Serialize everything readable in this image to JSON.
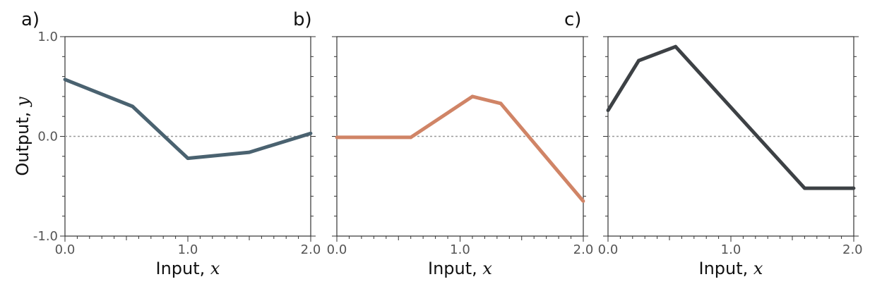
{
  "chart_data": [
    {
      "type": "line",
      "panel_label": "a)",
      "xlabel": "Input, ",
      "xlabel_var": "x",
      "ylabel": "Output, ",
      "ylabel_var": "y",
      "xlim": [
        0,
        2
      ],
      "ylim": [
        -1,
        1
      ],
      "xticks": [
        "0.0",
        "1.0",
        "2.0"
      ],
      "yticks": [
        "1.0",
        "0.0",
        "-1.0"
      ],
      "zero_line": true,
      "color": "#4a6270",
      "x": [
        0.0,
        0.55,
        1.0,
        1.5,
        2.0
      ],
      "y": [
        0.57,
        0.3,
        -0.22,
        -0.16,
        0.03
      ]
    },
    {
      "type": "line",
      "panel_label": "b)",
      "xlabel": "Input, ",
      "xlabel_var": "x",
      "xlim": [
        0,
        2
      ],
      "ylim": [
        -1,
        1
      ],
      "xticks": [
        "0.0",
        "1.0",
        "2.0"
      ],
      "zero_line": true,
      "color": "#d08466",
      "x": [
        0.0,
        0.6,
        1.1,
        1.33,
        2.0
      ],
      "y": [
        -0.01,
        -0.01,
        0.4,
        0.33,
        -0.65
      ]
    },
    {
      "type": "line",
      "panel_label": "c)",
      "xlabel": "Input, ",
      "xlabel_var": "x",
      "xlim": [
        0,
        2
      ],
      "ylim": [
        -1,
        1
      ],
      "xticks": [
        "0.0",
        "1.0",
        "2.0"
      ],
      "zero_line": true,
      "color": "#3d4145",
      "x": [
        0.0,
        0.25,
        0.55,
        1.6,
        2.0
      ],
      "y": [
        0.26,
        0.76,
        0.9,
        -0.52,
        -0.52
      ]
    }
  ]
}
